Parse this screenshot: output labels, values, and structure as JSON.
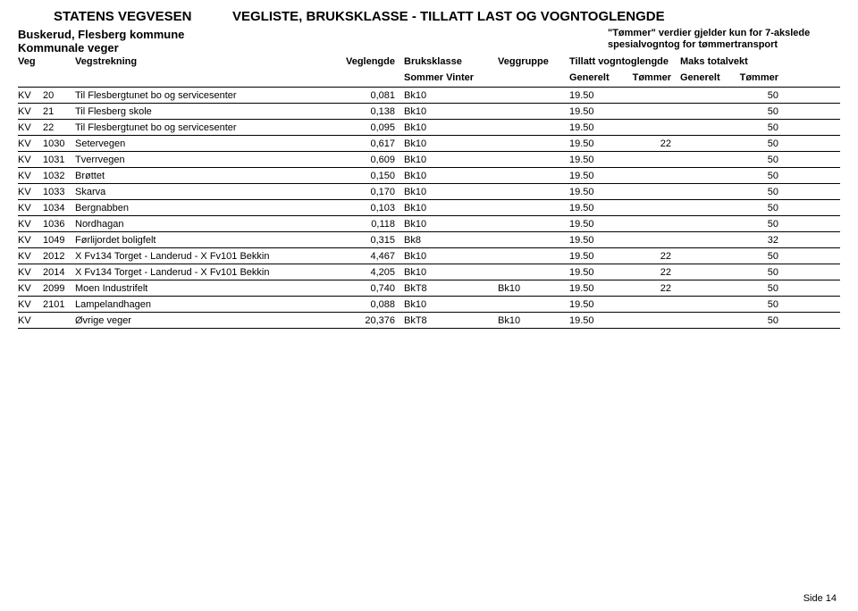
{
  "header": {
    "org": "STATENS VEGVESEN",
    "title": "VEGLISTE,  BRUKSKLASSE - TILLATT LAST OG VOGNTOGLENGDE"
  },
  "subheader": {
    "line1": "Buskerud, Flesberg kommune",
    "line2": "Kommunale veger"
  },
  "note": {
    "l1": "\"Tømmer\" verdier gjelder kun for 7-akslede",
    "l2": "spesialvogntog for tømmertransport"
  },
  "columns": {
    "veg": "Veg",
    "strek": "Vegstrekning",
    "lengde": "Veglengde",
    "bruks": "Bruksklasse",
    "bruks_sub": "Sommer  Vinter",
    "gruppe": "Veggruppe",
    "tillatt": "Tillatt vogntoglengde",
    "tillatt_g": "Generelt",
    "tillatt_t": "Tømmer",
    "maks": "Maks totalvekt",
    "maks_g": "Generelt",
    "maks_t": "Tømmer"
  },
  "rows": [
    {
      "veg": "KV",
      "num": "20",
      "name": "Til Flesbergtunet bo og servicesenter",
      "len": "0,081",
      "bk": "Bk10",
      "grp": "",
      "tg": "19.50",
      "tt": "",
      "mg": "",
      "mt": "50"
    },
    {
      "veg": "KV",
      "num": "21",
      "name": "Til Flesberg skole",
      "len": "0,138",
      "bk": "Bk10",
      "grp": "",
      "tg": "19.50",
      "tt": "",
      "mg": "",
      "mt": "50"
    },
    {
      "veg": "KV",
      "num": "22",
      "name": "Til Flesbergtunet bo og servicesenter",
      "len": "0,095",
      "bk": "Bk10",
      "grp": "",
      "tg": "19.50",
      "tt": "",
      "mg": "",
      "mt": "50"
    },
    {
      "veg": "KV",
      "num": "1030",
      "name": "Setervegen",
      "len": "0,617",
      "bk": "Bk10",
      "grp": "",
      "tg": "19.50",
      "tt": "22",
      "mg": "",
      "mt": "50"
    },
    {
      "veg": "KV",
      "num": "1031",
      "name": "Tverrvegen",
      "len": "0,609",
      "bk": "Bk10",
      "grp": "",
      "tg": "19.50",
      "tt": "",
      "mg": "",
      "mt": "50"
    },
    {
      "veg": "KV",
      "num": "1032",
      "name": "Brøttet",
      "len": "0,150",
      "bk": "Bk10",
      "grp": "",
      "tg": "19.50",
      "tt": "",
      "mg": "",
      "mt": "50"
    },
    {
      "veg": "KV",
      "num": "1033",
      "name": "Skarva",
      "len": "0,170",
      "bk": "Bk10",
      "grp": "",
      "tg": "19.50",
      "tt": "",
      "mg": "",
      "mt": "50"
    },
    {
      "veg": "KV",
      "num": "1034",
      "name": "Bergnabben",
      "len": "0,103",
      "bk": "Bk10",
      "grp": "",
      "tg": "19.50",
      "tt": "",
      "mg": "",
      "mt": "50"
    },
    {
      "veg": "KV",
      "num": "1036",
      "name": "Nordhagan",
      "len": "0,118",
      "bk": "Bk10",
      "grp": "",
      "tg": "19.50",
      "tt": "",
      "mg": "",
      "mt": "50"
    },
    {
      "veg": "KV",
      "num": "1049",
      "name": "Førlijordet boligfelt",
      "len": "0,315",
      "bk": "Bk8",
      "grp": "",
      "tg": "19.50",
      "tt": "",
      "mg": "",
      "mt": "32"
    },
    {
      "veg": "KV",
      "num": "2012",
      "name": "X Fv134 Torget - Landerud - X Fv101 Bekkin",
      "len": "4,467",
      "bk": "Bk10",
      "grp": "",
      "tg": "19.50",
      "tt": "22",
      "mg": "",
      "mt": "50"
    },
    {
      "veg": "KV",
      "num": "2014",
      "name": "X Fv134 Torget - Landerud - X Fv101 Bekkin",
      "len": "4,205",
      "bk": "Bk10",
      "grp": "",
      "tg": "19.50",
      "tt": "22",
      "mg": "",
      "mt": "50"
    },
    {
      "veg": "KV",
      "num": "2099",
      "name": "Moen Industrifelt",
      "len": "0,740",
      "bk": "BkT8",
      "grp": "Bk10",
      "tg": "19.50",
      "tt": "22",
      "mg": "",
      "mt": "50"
    },
    {
      "veg": "KV",
      "num": "2101",
      "name": "Lampelandhagen",
      "len": "0,088",
      "bk": "Bk10",
      "grp": "",
      "tg": "19.50",
      "tt": "",
      "mg": "",
      "mt": "50"
    },
    {
      "veg": "KV",
      "num": "",
      "name": "Øvrige veger",
      "len": "20,376",
      "bk": "BkT8",
      "grp": "Bk10",
      "tg": "19.50",
      "tt": "",
      "mg": "",
      "mt": "50"
    }
  ],
  "footer": {
    "page": "Side 14"
  }
}
